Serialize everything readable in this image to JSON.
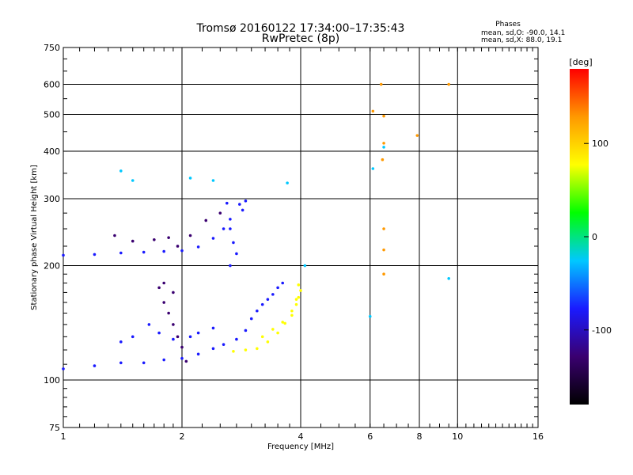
{
  "chart_data": {
    "type": "scatter",
    "title": "Tromsø 20160122 17:34:00–17:35:43",
    "subtitle": "RwPretec (8p)",
    "phases": {
      "heading": "Phases",
      "o_line": "mean, sd,O: -90.0, 14.1",
      "x_line": "mean, sd,X:  88.0, 19.1"
    },
    "xlabel": "Frequency [MHz]",
    "ylabel": "Stationary phase Virtual Height [km]",
    "xscale": "log2",
    "yscale": "log",
    "xlim": [
      1,
      16
    ],
    "ylim": [
      75,
      750
    ],
    "xticks": [
      1,
      2,
      4,
      6,
      8,
      10,
      16
    ],
    "xtick_labels": [
      "1",
      "2",
      "4",
      "6",
      "8",
      "10",
      "16"
    ],
    "x_major_gridlines": [
      2,
      4,
      6,
      8,
      10
    ],
    "yticks": [
      75,
      100,
      200,
      300,
      400,
      500,
      600,
      750
    ],
    "ytick_labels": [
      "75",
      "100",
      "200",
      "300",
      "400",
      "500",
      "600",
      "750"
    ],
    "y_major_gridlines": [
      100,
      200,
      300,
      400,
      500,
      600
    ],
    "grid": true,
    "colorbar": {
      "label": "[deg]",
      "min": -180,
      "max": 180,
      "ticks": [
        100,
        0,
        -100
      ],
      "tick_labels": [
        "100",
        "0",
        "-100"
      ],
      "colors": [
        "#000000",
        "#3a0070",
        "#1a1aff",
        "#00c8ff",
        "#00ff00",
        "#ffff00",
        "#ff9900",
        "#ff0000"
      ]
    },
    "series": [
      {
        "values": [
          [
            1.0,
            107
          ],
          [
            1.2,
            109
          ],
          [
            1.4,
            111
          ],
          [
            1.6,
            111
          ],
          [
            1.8,
            113
          ],
          [
            2.0,
            114
          ],
          [
            2.2,
            117
          ],
          [
            2.4,
            121
          ],
          [
            2.55,
            124
          ]
        ],
        "phase": -100
      },
      {
        "values": [
          [
            1.0,
            213
          ],
          [
            1.2,
            214
          ],
          [
            1.4,
            216
          ],
          [
            1.6,
            217
          ],
          [
            1.8,
            218
          ],
          [
            2.0,
            219
          ],
          [
            2.2,
            224
          ],
          [
            2.4,
            236
          ],
          [
            2.55,
            250
          ],
          [
            2.65,
            265
          ]
        ],
        "phase": -100
      },
      {
        "values": [
          [
            1.35,
            240
          ],
          [
            1.5,
            232
          ],
          [
            1.7,
            234
          ],
          [
            1.85,
            237
          ],
          [
            1.95,
            225
          ],
          [
            2.1,
            240
          ],
          [
            2.3,
            263
          ],
          [
            2.5,
            275
          ]
        ],
        "phase": -110
      },
      {
        "values": [
          [
            1.75,
            175
          ],
          [
            1.8,
            160
          ],
          [
            1.85,
            150
          ],
          [
            1.9,
            140
          ],
          [
            1.95,
            130
          ],
          [
            2.0,
            122
          ],
          [
            2.05,
            112
          ],
          [
            1.9,
            170
          ],
          [
            1.8,
            180
          ]
        ],
        "phase": -130
      },
      {
        "values": [
          [
            1.65,
            140
          ],
          [
            1.75,
            133
          ],
          [
            1.9,
            128
          ],
          [
            2.1,
            130
          ],
          [
            2.2,
            133
          ],
          [
            2.4,
            137
          ],
          [
            1.5,
            130
          ],
          [
            1.4,
            126
          ]
        ],
        "phase": -90
      },
      {
        "values": [
          [
            2.65,
            250
          ],
          [
            2.7,
            230
          ],
          [
            2.75,
            215
          ],
          [
            2.65,
            200
          ],
          [
            2.6,
            292
          ],
          [
            2.8,
            290
          ],
          [
            2.9,
            296
          ],
          [
            2.85,
            280
          ]
        ],
        "phase": -85
      },
      {
        "values": [
          [
            2.75,
            128
          ],
          [
            2.9,
            135
          ],
          [
            3.0,
            145
          ],
          [
            3.1,
            152
          ],
          [
            3.2,
            158
          ],
          [
            3.3,
            163
          ],
          [
            3.4,
            168
          ],
          [
            3.5,
            175
          ],
          [
            3.6,
            180
          ]
        ],
        "phase": -60
      },
      {
        "values": [
          [
            2.7,
            119
          ],
          [
            2.9,
            120
          ],
          [
            3.1,
            121
          ],
          [
            3.3,
            126
          ],
          [
            3.5,
            133
          ],
          [
            3.65,
            141
          ],
          [
            3.8,
            152
          ],
          [
            3.9,
            163
          ],
          [
            3.95,
            178
          ]
        ],
        "phase": 75
      },
      {
        "values": [
          [
            3.2,
            130
          ],
          [
            3.4,
            136
          ],
          [
            3.6,
            142
          ],
          [
            3.8,
            148
          ],
          [
            3.9,
            158
          ],
          [
            3.95,
            165
          ],
          [
            4.0,
            172
          ]
        ],
        "phase": 100
      },
      {
        "values": [
          [
            6.4,
            600
          ],
          [
            6.5,
            495
          ],
          [
            6.5,
            420
          ],
          [
            6.45,
            380
          ],
          [
            6.5,
            250
          ],
          [
            6.5,
            220
          ],
          [
            6.5,
            190
          ],
          [
            7.9,
            440
          ],
          [
            6.1,
            510
          ],
          [
            9.5,
            600
          ]
        ],
        "phase": 130
      },
      {
        "values": [
          [
            6.1,
            360
          ],
          [
            6.5,
            410
          ],
          [
            9.5,
            185
          ],
          [
            6.0,
            147
          ],
          [
            4.1,
            200
          ],
          [
            1.4,
            355
          ],
          [
            1.5,
            335
          ],
          [
            2.1,
            340
          ],
          [
            2.4,
            335
          ],
          [
            3.7,
            330
          ]
        ],
        "phase": -40
      }
    ]
  }
}
